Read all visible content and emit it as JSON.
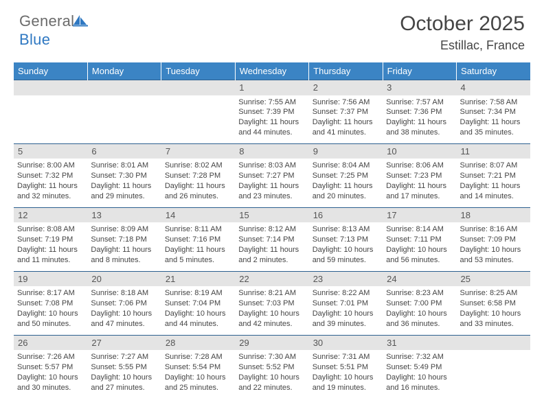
{
  "logo": {
    "part1": "General",
    "part2": "Blue"
  },
  "title": "October 2025",
  "location": "Estillac, France",
  "colors": {
    "header_bg": "#3b84c4",
    "header_text": "#ffffff",
    "daynum_bg": "#e4e4e4",
    "row_border": "#2b5f8f",
    "logo_gray": "#6b6b6b",
    "logo_blue": "#2f78c2",
    "title_color": "#454545"
  },
  "daysOfWeek": [
    "Sunday",
    "Monday",
    "Tuesday",
    "Wednesday",
    "Thursday",
    "Friday",
    "Saturday"
  ],
  "weeks": [
    [
      null,
      null,
      null,
      {
        "n": "1",
        "sr": "7:55 AM",
        "ss": "7:39 PM",
        "dl": "11 hours and 44 minutes."
      },
      {
        "n": "2",
        "sr": "7:56 AM",
        "ss": "7:37 PM",
        "dl": "11 hours and 41 minutes."
      },
      {
        "n": "3",
        "sr": "7:57 AM",
        "ss": "7:36 PM",
        "dl": "11 hours and 38 minutes."
      },
      {
        "n": "4",
        "sr": "7:58 AM",
        "ss": "7:34 PM",
        "dl": "11 hours and 35 minutes."
      }
    ],
    [
      {
        "n": "5",
        "sr": "8:00 AM",
        "ss": "7:32 PM",
        "dl": "11 hours and 32 minutes."
      },
      {
        "n": "6",
        "sr": "8:01 AM",
        "ss": "7:30 PM",
        "dl": "11 hours and 29 minutes."
      },
      {
        "n": "7",
        "sr": "8:02 AM",
        "ss": "7:28 PM",
        "dl": "11 hours and 26 minutes."
      },
      {
        "n": "8",
        "sr": "8:03 AM",
        "ss": "7:27 PM",
        "dl": "11 hours and 23 minutes."
      },
      {
        "n": "9",
        "sr": "8:04 AM",
        "ss": "7:25 PM",
        "dl": "11 hours and 20 minutes."
      },
      {
        "n": "10",
        "sr": "8:06 AM",
        "ss": "7:23 PM",
        "dl": "11 hours and 17 minutes."
      },
      {
        "n": "11",
        "sr": "8:07 AM",
        "ss": "7:21 PM",
        "dl": "11 hours and 14 minutes."
      }
    ],
    [
      {
        "n": "12",
        "sr": "8:08 AM",
        "ss": "7:19 PM",
        "dl": "11 hours and 11 minutes."
      },
      {
        "n": "13",
        "sr": "8:09 AM",
        "ss": "7:18 PM",
        "dl": "11 hours and 8 minutes."
      },
      {
        "n": "14",
        "sr": "8:11 AM",
        "ss": "7:16 PM",
        "dl": "11 hours and 5 minutes."
      },
      {
        "n": "15",
        "sr": "8:12 AM",
        "ss": "7:14 PM",
        "dl": "11 hours and 2 minutes."
      },
      {
        "n": "16",
        "sr": "8:13 AM",
        "ss": "7:13 PM",
        "dl": "10 hours and 59 minutes."
      },
      {
        "n": "17",
        "sr": "8:14 AM",
        "ss": "7:11 PM",
        "dl": "10 hours and 56 minutes."
      },
      {
        "n": "18",
        "sr": "8:16 AM",
        "ss": "7:09 PM",
        "dl": "10 hours and 53 minutes."
      }
    ],
    [
      {
        "n": "19",
        "sr": "8:17 AM",
        "ss": "7:08 PM",
        "dl": "10 hours and 50 minutes."
      },
      {
        "n": "20",
        "sr": "8:18 AM",
        "ss": "7:06 PM",
        "dl": "10 hours and 47 minutes."
      },
      {
        "n": "21",
        "sr": "8:19 AM",
        "ss": "7:04 PM",
        "dl": "10 hours and 44 minutes."
      },
      {
        "n": "22",
        "sr": "8:21 AM",
        "ss": "7:03 PM",
        "dl": "10 hours and 42 minutes."
      },
      {
        "n": "23",
        "sr": "8:22 AM",
        "ss": "7:01 PM",
        "dl": "10 hours and 39 minutes."
      },
      {
        "n": "24",
        "sr": "8:23 AM",
        "ss": "7:00 PM",
        "dl": "10 hours and 36 minutes."
      },
      {
        "n": "25",
        "sr": "8:25 AM",
        "ss": "6:58 PM",
        "dl": "10 hours and 33 minutes."
      }
    ],
    [
      {
        "n": "26",
        "sr": "7:26 AM",
        "ss": "5:57 PM",
        "dl": "10 hours and 30 minutes."
      },
      {
        "n": "27",
        "sr": "7:27 AM",
        "ss": "5:55 PM",
        "dl": "10 hours and 27 minutes."
      },
      {
        "n": "28",
        "sr": "7:28 AM",
        "ss": "5:54 PM",
        "dl": "10 hours and 25 minutes."
      },
      {
        "n": "29",
        "sr": "7:30 AM",
        "ss": "5:52 PM",
        "dl": "10 hours and 22 minutes."
      },
      {
        "n": "30",
        "sr": "7:31 AM",
        "ss": "5:51 PM",
        "dl": "10 hours and 19 minutes."
      },
      {
        "n": "31",
        "sr": "7:32 AM",
        "ss": "5:49 PM",
        "dl": "10 hours and 16 minutes."
      },
      null
    ]
  ],
  "labels": {
    "sunrise": "Sunrise: ",
    "sunset": "Sunset: ",
    "daylight": "Daylight: "
  }
}
